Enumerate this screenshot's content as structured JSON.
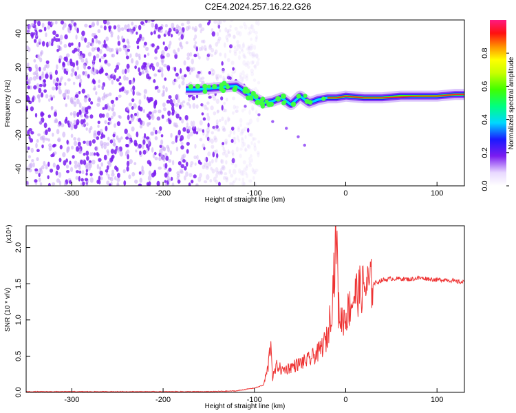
{
  "title": "C2E4.2024.257.16.22.G26",
  "chart_data": [
    {
      "type": "heatmap",
      "xlabel": "Height of straight line (km)",
      "ylabel": "Frequency (Hz)",
      "xlim": [
        -350,
        130
      ],
      "ylim": [
        -50,
        48
      ],
      "xticks": [
        "-300",
        "-200",
        "-100",
        "0",
        "100"
      ],
      "yticks": [
        "40",
        "20",
        "0",
        "-20",
        "-40"
      ],
      "colorbar": {
        "label": "Normalized spectral amplitude",
        "range": [
          0,
          1
        ],
        "ticks": [
          "0.0",
          "0.2",
          "0.4",
          "0.6",
          "0.8"
        ]
      },
      "ridge_trace": {
        "x": [
          -175,
          -160,
          -140,
          -120,
          -100,
          -90,
          -80,
          -70,
          -60,
          -50,
          -40,
          -30,
          -20,
          -10,
          0,
          20,
          40,
          60,
          80,
          100,
          120,
          130
        ],
        "y": [
          7,
          7,
          8,
          9,
          2,
          -1,
          0,
          2,
          -2,
          3,
          -1,
          1,
          2,
          2,
          3,
          2,
          2,
          3,
          3,
          3,
          4,
          4
        ]
      },
      "noise_region_x": [
        -350,
        -125
      ]
    },
    {
      "type": "line",
      "xlabel": "Height of straight line (km)",
      "ylabel": "SNR (10 * v/v)",
      "multiplier": "(x10⁴)",
      "xlim": [
        -350,
        130
      ],
      "ylim": [
        0,
        2.3
      ],
      "xticks": [
        "-300",
        "-200",
        "-100",
        "0",
        "100"
      ],
      "yticks": [
        "0.0",
        "0.5",
        "1.0",
        "1.5",
        "2.0"
      ],
      "color": "#ee3333",
      "series": [
        {
          "x": [
            -350,
            -300,
            -250,
            -200,
            -150,
            -120,
            -100,
            -90,
            -85,
            -82,
            -80,
            -75,
            -70,
            -60,
            -50,
            -40,
            -30,
            -20,
            -15,
            -10,
            -8,
            -5,
            0,
            10,
            20,
            30,
            40,
            50,
            60,
            70,
            80,
            90,
            100,
            110,
            120,
            130
          ],
          "y": [
            0.01,
            0.01,
            0.01,
            0.01,
            0.01,
            0.02,
            0.06,
            0.1,
            0.35,
            0.72,
            0.2,
            0.38,
            0.3,
            0.35,
            0.4,
            0.45,
            0.55,
            0.75,
            1.25,
            2.25,
            1.15,
            1.0,
            1.05,
            1.35,
            1.45,
            1.5,
            1.55,
            1.57,
            1.57,
            1.56,
            1.58,
            1.57,
            1.55,
            1.56,
            1.53,
            1.52
          ]
        }
      ]
    }
  ]
}
